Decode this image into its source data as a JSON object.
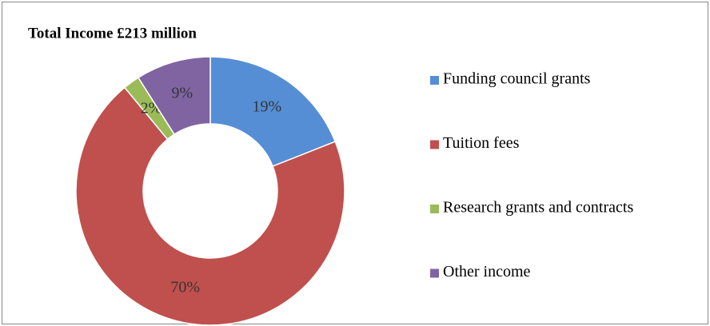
{
  "chart_data": {
    "type": "doughnut",
    "title": "Total Income £213 million",
    "categories": [
      "Funding council grants",
      "Tuition fees",
      "Research grants and contracts",
      "Other income"
    ],
    "values": [
      19,
      70,
      2,
      9
    ],
    "value_labels": [
      "19%",
      "70%",
      "2%",
      "9%"
    ],
    "colors": [
      "#558ed5",
      "#c0504d",
      "#9bbb59",
      "#8064a2"
    ],
    "legend": "right"
  }
}
